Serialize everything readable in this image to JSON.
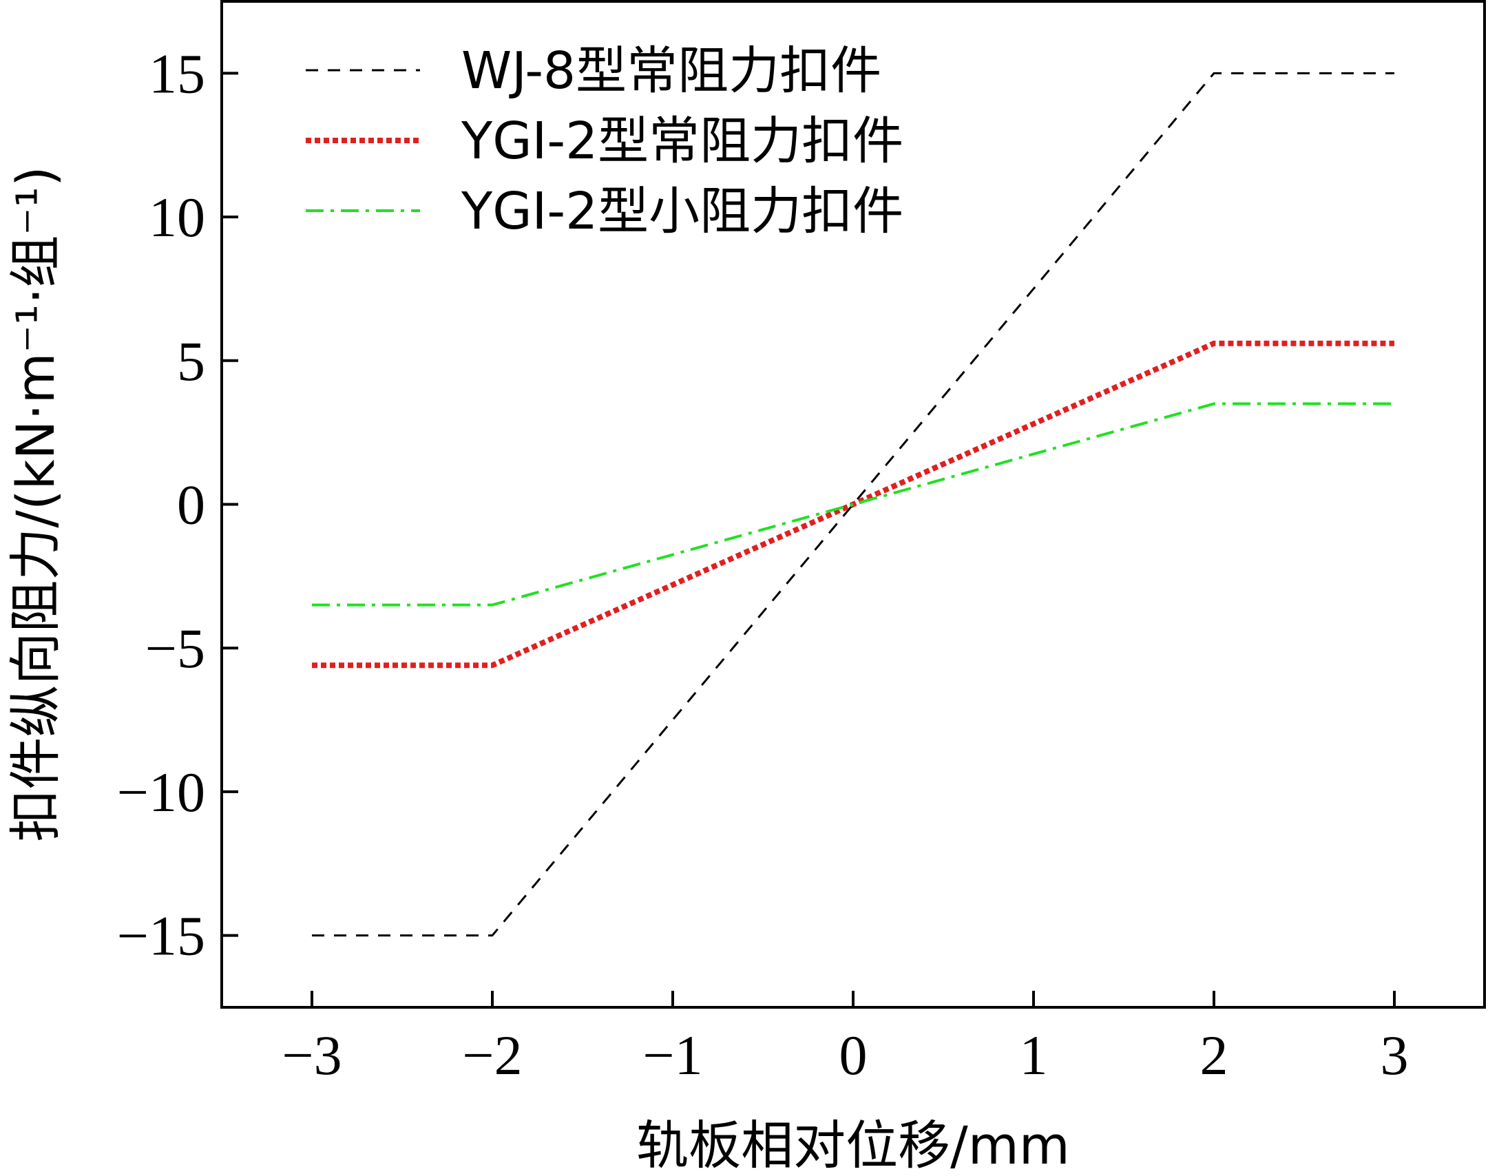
{
  "chart_data": {
    "type": "line",
    "title": "",
    "xlabel": "轨板相对位移/mm",
    "ylabel": "扣件纵向阻力/(kN·m⁻¹·组⁻¹)",
    "xlim": [
      -3.5,
      3.5
    ],
    "ylim": [
      -17.5,
      17.5
    ],
    "xticks": [
      -3,
      -2,
      -1,
      0,
      1,
      2,
      3
    ],
    "yticks": [
      -15,
      -10,
      -5,
      0,
      5,
      10,
      15
    ],
    "xtick_labels": [
      "−3",
      "−2",
      "−1",
      "0",
      "1",
      "2",
      "3"
    ],
    "ytick_labels": [
      "−15",
      "−10",
      "−5",
      "0",
      "5",
      "10",
      "15"
    ],
    "grid": false,
    "legend_position": "top-left",
    "series": [
      {
        "name": "WJ-8型常阻力扣件",
        "color": "#000000",
        "style": "dashed",
        "x": [
          -3,
          -2,
          2,
          3
        ],
        "y": [
          -15,
          -15,
          15,
          15
        ]
      },
      {
        "name": "YGI-2型常阻力扣件",
        "color": "#e02020",
        "style": "dotted",
        "x": [
          -3,
          -2,
          2,
          3
        ],
        "y": [
          -5.6,
          -5.6,
          5.6,
          5.6
        ]
      },
      {
        "name": "YGI-2型小阻力扣件",
        "color": "#22e022",
        "style": "dashdot",
        "x": [
          -3,
          -2,
          2,
          3
        ],
        "y": [
          -3.5,
          -3.5,
          3.5,
          3.5
        ]
      }
    ]
  }
}
